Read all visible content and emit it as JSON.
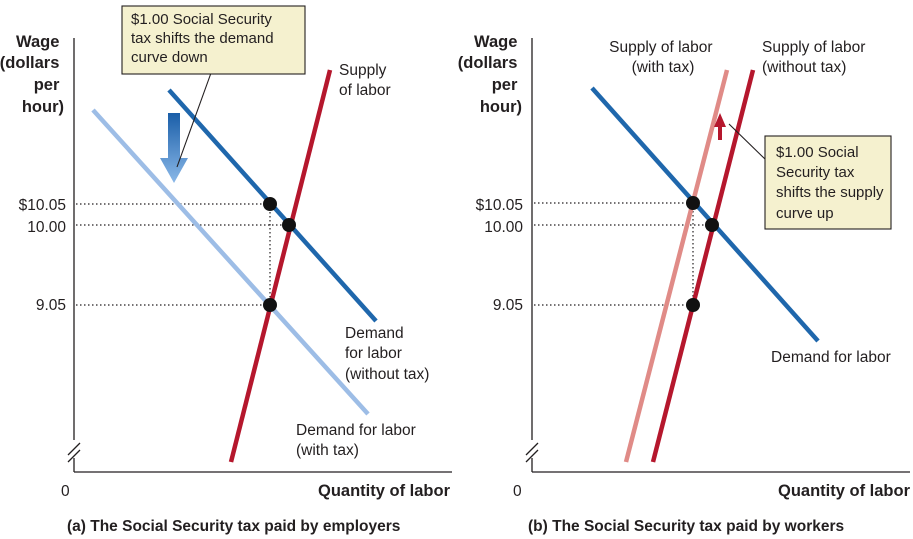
{
  "chart_data": [
    {
      "type": "line",
      "caption": "(a) The Social Security tax paid by employers",
      "ylabel": [
        "Wage",
        "(dollars",
        "per",
        "hour)"
      ],
      "xlabel": "Quantity of labor",
      "origin_label": "0",
      "y_ticks": [
        "$10.05",
        "10.00",
        "9.05"
      ],
      "y_tick_values": [
        10.05,
        10.0,
        9.05
      ],
      "series": [
        {
          "key": "supply",
          "label": [
            "Supply",
            "of labor"
          ],
          "color": "#b5172d"
        },
        {
          "key": "demand_no_tax",
          "label": [
            "Demand",
            "for labor",
            "(without tax)"
          ],
          "color": "#1f67ac"
        },
        {
          "key": "demand_tax",
          "label": [
            "Demand for labor",
            "(with tax)"
          ],
          "color": "#9dbde6"
        }
      ],
      "equilibrium_points": [
        {
          "name": "equilibrium-without-tax",
          "wage": 10.0
        },
        {
          "name": "wage-paid-by-employer",
          "wage": 10.05
        },
        {
          "name": "wage-received-by-worker",
          "wage": 9.05
        }
      ],
      "callout": [
        "$1.00 Social Security",
        "tax shifts the demand",
        "curve down"
      ],
      "shift_direction": "down",
      "shift_arrow_color": "#2c79c6"
    },
    {
      "type": "line",
      "caption": "(b) The Social Security tax paid by workers",
      "ylabel": [
        "Wage",
        "(dollars",
        "per",
        "hour)"
      ],
      "xlabel": "Quantity of labor",
      "origin_label": "0",
      "y_ticks": [
        "$10.05",
        "10.00",
        "9.05"
      ],
      "y_tick_values": [
        10.05,
        10.0,
        9.05
      ],
      "series": [
        {
          "key": "supply_tax",
          "label": [
            "Supply of labor",
            "(with tax)"
          ],
          "color": "#e08b87"
        },
        {
          "key": "supply",
          "label": [
            "Supply of labor",
            "(without tax)"
          ],
          "color": "#b5172d"
        },
        {
          "key": "demand",
          "label": [
            "Demand for labor"
          ],
          "color": "#1f67ac"
        }
      ],
      "equilibrium_points": [
        {
          "name": "equilibrium-without-tax",
          "wage": 10.0
        },
        {
          "name": "wage-paid-by-employer",
          "wage": 10.05
        },
        {
          "name": "wage-received-by-worker",
          "wage": 9.05
        }
      ],
      "callout": [
        "$1.00 Social",
        "Security tax",
        "shifts the supply",
        "curve up"
      ],
      "shift_direction": "up",
      "shift_arrow_color": "#b5172d"
    }
  ]
}
